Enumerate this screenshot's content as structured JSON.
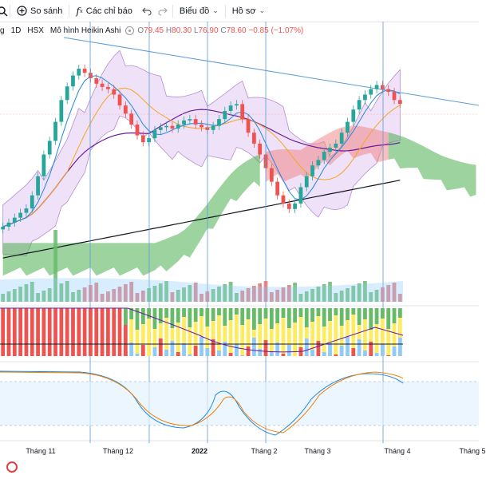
{
  "toolbar": {
    "compare_label": "So sánh",
    "indicators_label": "Các chỉ báo",
    "chart_label": "Biểu đồ",
    "profile_label": "Hồ sơ"
  },
  "legend": {
    "symbol": "g",
    "interval": "1D",
    "exchange": "HSX",
    "mode": "Mô hình Heikin Ashi",
    "o_key": "O",
    "o_val": "79.45",
    "h_key": "H",
    "h_val": "80.30",
    "l_key": "L",
    "l_val": "76.90",
    "c_key": "C",
    "c_val": "78.60",
    "change": "−0.85 (−1.07%)"
  },
  "time_axis": [
    {
      "label": "Tháng 11",
      "bold": false
    },
    {
      "label": "Tháng 12",
      "bold": false
    },
    {
      "label": "2022",
      "bold": true
    },
    {
      "label": "Tháng 2",
      "bold": false
    },
    {
      "label": "Tháng 3",
      "bold": false
    },
    {
      "label": "Tháng 4",
      "bold": false
    },
    {
      "label": "Tháng 5",
      "bold": false
    }
  ],
  "colors": {
    "up": "#26a69a",
    "down": "#ef5350",
    "cloud_bull": "#4caf50",
    "cloud_bear": "#f08080",
    "bb_fill": "#e1c8f0",
    "trendline": "#5b9bd5",
    "ma_slow": "#131722",
    "ma_mid": "#6a1b9a",
    "ma_fast": "#f5a623",
    "vline": "#5b9bd5"
  },
  "chart_data": {
    "type": "candlestick",
    "price": [
      33.5,
      35.0,
      36.8,
      38.6,
      40.2,
      45.0,
      52.0,
      60.0,
      65.0,
      72.0,
      80.0,
      85.0,
      89.0,
      91.5,
      90.0,
      88.0,
      86.0,
      84.8,
      84.0,
      82.0,
      78.0,
      75.0,
      71.0,
      67.0,
      64.5,
      66.0,
      69.0,
      70.0,
      70.5,
      69.5,
      71.0,
      72.5,
      73.0,
      71.0,
      70.0,
      69.0,
      70.5,
      73.0,
      76.0,
      78.0,
      78.5,
      73.0,
      68.0,
      64.0,
      60.0,
      55.0,
      50.0,
      45.0,
      42.0,
      40.0,
      42.0,
      48.0,
      52.0,
      56.0,
      58.0,
      61.0,
      62.5,
      64.0,
      68.0,
      72.0,
      76.5,
      80.0,
      82.0,
      84.0,
      85.5,
      84.0,
      83.0,
      80.0,
      78.6
    ],
    "indicator_price_range": [
      20,
      105
    ],
    "volume_note": "volume bars with green/red coloring",
    "stochastic": {
      "upper": 80,
      "lower": 20
    }
  }
}
